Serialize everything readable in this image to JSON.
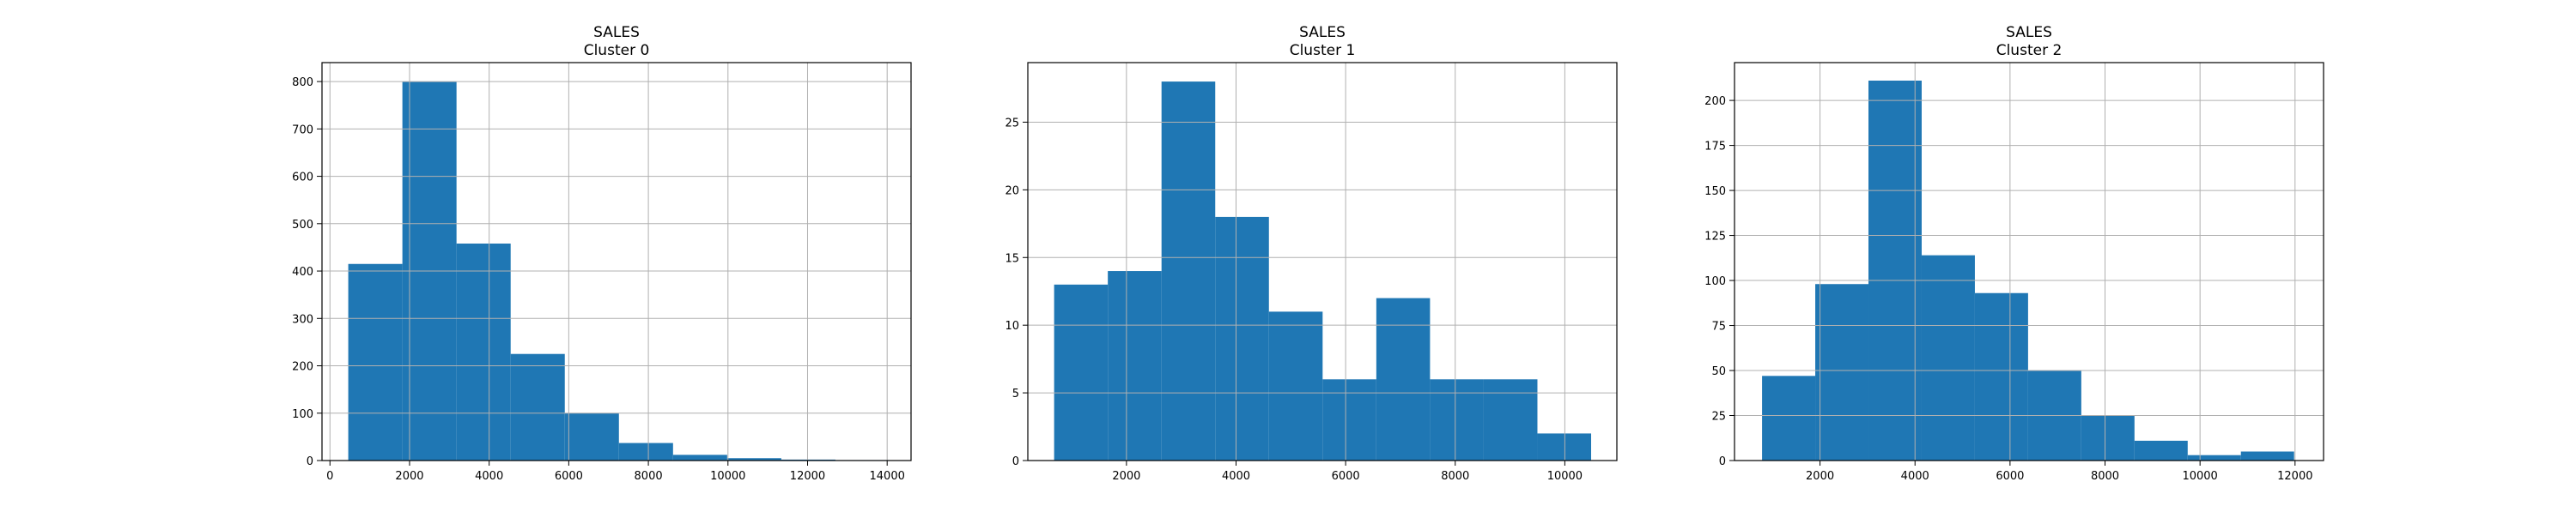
{
  "chart_data": [
    {
      "type": "bar",
      "title": "SALES",
      "subtitle": "Cluster 0",
      "grid": true,
      "xlim": [
        -200,
        14600
      ],
      "ylim": [
        0,
        840
      ],
      "xticks": [
        0,
        2000,
        4000,
        6000,
        8000,
        10000,
        12000,
        14000
      ],
      "yticks": [
        0,
        100,
        200,
        300,
        400,
        500,
        600,
        700,
        800
      ],
      "bin_edges": [
        460,
        1820,
        3180,
        4540,
        5900,
        7260,
        8620,
        9980,
        11340,
        12700,
        14060
      ],
      "values": [
        415,
        800,
        458,
        225,
        100,
        37,
        12,
        5,
        2,
        1
      ],
      "color": "#1f77b4"
    },
    {
      "type": "bar",
      "title": "SALES",
      "subtitle": "Cluster 1",
      "grid": true,
      "xlim": [
        200,
        10950
      ],
      "ylim": [
        0,
        29.4
      ],
      "xticks": [
        2000,
        4000,
        6000,
        8000,
        10000
      ],
      "yticks": [
        0,
        5,
        10,
        15,
        20,
        25
      ],
      "bin_edges": [
        680,
        1660,
        2640,
        3620,
        4600,
        5580,
        6560,
        7540,
        8520,
        9500,
        10480
      ],
      "values": [
        13,
        14,
        28,
        18,
        11,
        6,
        12,
        6,
        6,
        2
      ],
      "color": "#1f77b4"
    },
    {
      "type": "bar",
      "title": "SALES",
      "subtitle": "Cluster 2",
      "grid": true,
      "xlim": [
        200,
        12600
      ],
      "ylim": [
        0,
        221
      ],
      "xticks": [
        2000,
        4000,
        6000,
        8000,
        10000,
        12000
      ],
      "yticks": [
        0,
        25,
        50,
        75,
        100,
        125,
        150,
        175,
        200
      ],
      "bin_edges": [
        780,
        1900,
        3020,
        4140,
        5260,
        6380,
        7500,
        8620,
        9740,
        10860,
        11980
      ],
      "values": [
        47,
        98,
        211,
        114,
        93,
        50,
        25,
        11,
        3,
        5
      ],
      "color": "#1f77b4"
    }
  ]
}
